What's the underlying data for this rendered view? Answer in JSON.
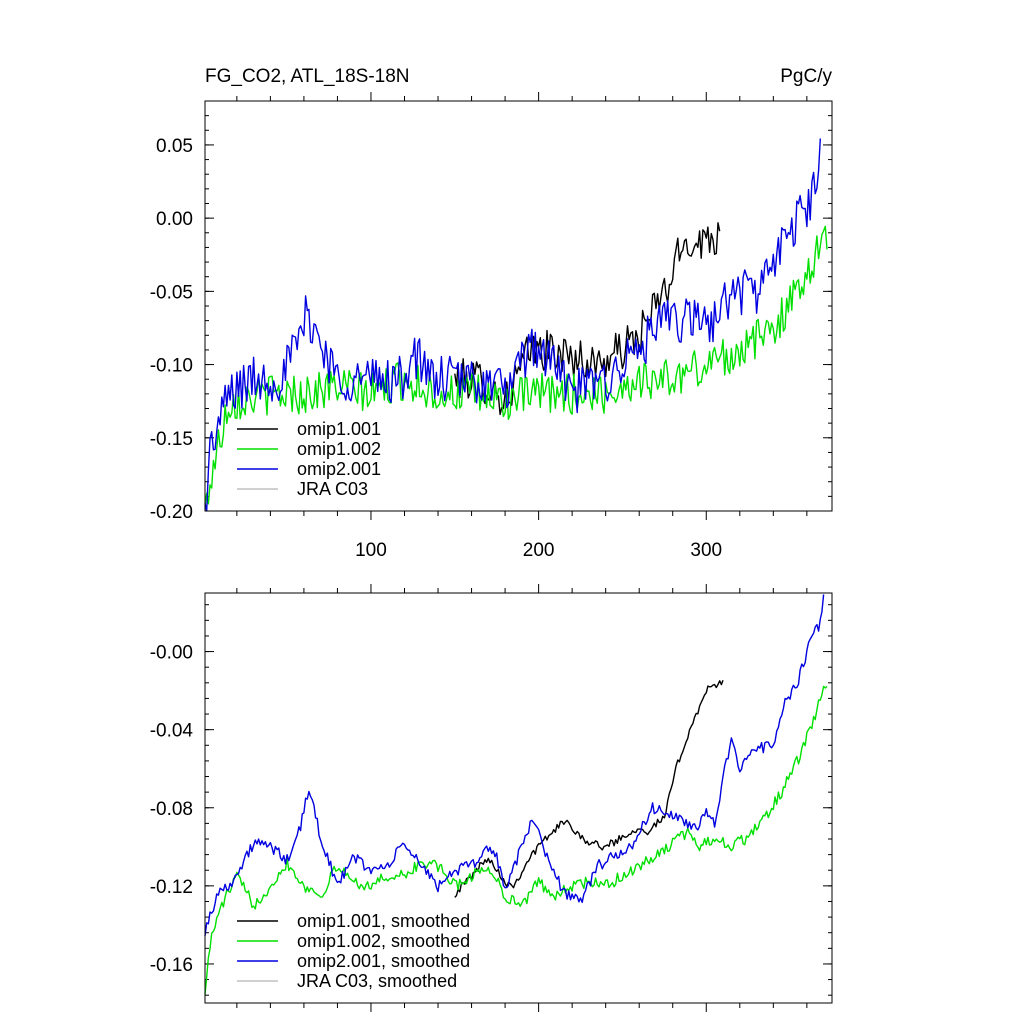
{
  "chart_data": [
    {
      "type": "line",
      "title_left": "FG_CO2, ATL_18S-18N",
      "title_right": "PgC/y",
      "xlabel": "",
      "ylabel": "",
      "xlim": [
        1,
        375
      ],
      "ylim": [
        -0.2,
        0.08
      ],
      "x_ticks": [
        100,
        200,
        300
      ],
      "x_tick_labels": [
        "100",
        "200",
        "300"
      ],
      "y_ticks": [
        -0.2,
        -0.15,
        -0.1,
        -0.05,
        0.0,
        0.05
      ],
      "y_tick_labels": [
        "-0.20",
        "-0.15",
        "-0.10",
        "-0.05",
        "0.00",
        "0.05"
      ],
      "legend_position": "bottom-left",
      "series": [
        {
          "name": "omip1.001",
          "color": "#000000",
          "anchors": [
            [
              150,
              -0.11
            ],
            [
              165,
              -0.11
            ],
            [
              180,
              -0.125
            ],
            [
              195,
              -0.09
            ],
            [
              205,
              -0.09
            ],
            [
              220,
              -0.095
            ],
            [
              235,
              -0.1
            ],
            [
              250,
              -0.09
            ],
            [
              260,
              -0.08
            ],
            [
              270,
              -0.06
            ],
            [
              278,
              -0.045
            ],
            [
              285,
              -0.02
            ],
            [
              292,
              -0.015
            ],
            [
              300,
              -0.015
            ],
            [
              308,
              -0.01
            ]
          ],
          "noise": 0.014
        },
        {
          "name": "omip1.002",
          "color": "#00e000",
          "anchors": [
            [
              1,
              -0.2
            ],
            [
              4,
              -0.18
            ],
            [
              15,
              -0.125
            ],
            [
              40,
              -0.12
            ],
            [
              60,
              -0.12
            ],
            [
              80,
              -0.115
            ],
            [
              100,
              -0.12
            ],
            [
              120,
              -0.11
            ],
            [
              140,
              -0.12
            ],
            [
              160,
              -0.12
            ],
            [
              180,
              -0.125
            ],
            [
              200,
              -0.12
            ],
            [
              220,
              -0.12
            ],
            [
              240,
              -0.12
            ],
            [
              260,
              -0.11
            ],
            [
              280,
              -0.11
            ],
            [
              300,
              -0.1
            ],
            [
              320,
              -0.09
            ],
            [
              335,
              -0.08
            ],
            [
              350,
              -0.06
            ],
            [
              360,
              -0.035
            ],
            [
              368,
              -0.02
            ],
            [
              372,
              -0.015
            ]
          ],
          "noise": 0.014
        },
        {
          "name": "omip2.001",
          "color": "#0000e0",
          "anchors": [
            [
              1,
              -0.2
            ],
            [
              4,
              -0.16
            ],
            [
              15,
              -0.12
            ],
            [
              30,
              -0.11
            ],
            [
              45,
              -0.11
            ],
            [
              55,
              -0.09
            ],
            [
              62,
              -0.065
            ],
            [
              68,
              -0.08
            ],
            [
              80,
              -0.11
            ],
            [
              100,
              -0.11
            ],
            [
              120,
              -0.11
            ],
            [
              125,
              -0.09
            ],
            [
              135,
              -0.11
            ],
            [
              160,
              -0.11
            ],
            [
              175,
              -0.115
            ],
            [
              185,
              -0.115
            ],
            [
              195,
              -0.085
            ],
            [
              210,
              -0.1
            ],
            [
              220,
              -0.12
            ],
            [
              240,
              -0.11
            ],
            [
              250,
              -0.1
            ],
            [
              260,
              -0.09
            ],
            [
              270,
              -0.075
            ],
            [
              280,
              -0.07
            ],
            [
              290,
              -0.07
            ],
            [
              305,
              -0.07
            ],
            [
              315,
              -0.05
            ],
            [
              330,
              -0.05
            ],
            [
              345,
              -0.02
            ],
            [
              355,
              0.0
            ],
            [
              365,
              0.02
            ],
            [
              368,
              0.045
            ]
          ],
          "noise": 0.016
        },
        {
          "name": "JRA C03",
          "color": "#c0c0c0",
          "anchors": [],
          "noise": 0
        }
      ]
    },
    {
      "type": "line",
      "xlabel": "",
      "ylabel": "",
      "xlim": [
        1,
        375
      ],
      "ylim": [
        -0.18,
        0.03
      ],
      "x_ticks": [
        100,
        200,
        300
      ],
      "y_ticks": [
        -0.16,
        -0.12,
        -0.08,
        -0.04,
        0.0
      ],
      "y_tick_labels": [
        "-0.16",
        "-0.12",
        "-0.08",
        "-0.04",
        "-0.00"
      ],
      "legend_position": "bottom-left",
      "series": [
        {
          "name": "omip1.001, smoothed",
          "color": "#000000",
          "anchors": [
            [
              150,
              -0.124
            ],
            [
              160,
              -0.115
            ],
            [
              170,
              -0.105
            ],
            [
              180,
              -0.118
            ],
            [
              185,
              -0.12
            ],
            [
              195,
              -0.105
            ],
            [
              205,
              -0.095
            ],
            [
              215,
              -0.087
            ],
            [
              220,
              -0.09
            ],
            [
              230,
              -0.098
            ],
            [
              240,
              -0.1
            ],
            [
              250,
              -0.095
            ],
            [
              260,
              -0.09
            ],
            [
              265,
              -0.092
            ],
            [
              275,
              -0.085
            ],
            [
              282,
              -0.06
            ],
            [
              288,
              -0.045
            ],
            [
              295,
              -0.03
            ],
            [
              300,
              -0.02
            ],
            [
              305,
              -0.018
            ],
            [
              310,
              -0.015
            ]
          ],
          "noise": 0.002
        },
        {
          "name": "omip1.002, smoothed",
          "color": "#00e000",
          "anchors": [
            [
              1,
              -0.173
            ],
            [
              5,
              -0.145
            ],
            [
              12,
              -0.128
            ],
            [
              20,
              -0.115
            ],
            [
              30,
              -0.13
            ],
            [
              40,
              -0.12
            ],
            [
              50,
              -0.108
            ],
            [
              60,
              -0.12
            ],
            [
              70,
              -0.125
            ],
            [
              80,
              -0.11
            ],
            [
              90,
              -0.118
            ],
            [
              100,
              -0.12
            ],
            [
              110,
              -0.115
            ],
            [
              120,
              -0.115
            ],
            [
              130,
              -0.108
            ],
            [
              140,
              -0.11
            ],
            [
              150,
              -0.12
            ],
            [
              160,
              -0.115
            ],
            [
              170,
              -0.11
            ],
            [
              180,
              -0.125
            ],
            [
              190,
              -0.13
            ],
            [
              200,
              -0.118
            ],
            [
              210,
              -0.125
            ],
            [
              220,
              -0.12
            ],
            [
              230,
              -0.118
            ],
            [
              240,
              -0.12
            ],
            [
              250,
              -0.115
            ],
            [
              260,
              -0.11
            ],
            [
              270,
              -0.105
            ],
            [
              280,
              -0.098
            ],
            [
              290,
              -0.092
            ],
            [
              295,
              -0.1
            ],
            [
              305,
              -0.095
            ],
            [
              315,
              -0.1
            ],
            [
              325,
              -0.095
            ],
            [
              335,
              -0.085
            ],
            [
              345,
              -0.072
            ],
            [
              355,
              -0.055
            ],
            [
              362,
              -0.04
            ],
            [
              368,
              -0.025
            ],
            [
              372,
              -0.016
            ]
          ],
          "noise": 0.003
        },
        {
          "name": "omip2.001, smoothed",
          "color": "#0000e0",
          "anchors": [
            [
              1,
              -0.143
            ],
            [
              8,
              -0.125
            ],
            [
              20,
              -0.115
            ],
            [
              30,
              -0.098
            ],
            [
              40,
              -0.1
            ],
            [
              50,
              -0.107
            ],
            [
              58,
              -0.09
            ],
            [
              63,
              -0.07
            ],
            [
              70,
              -0.095
            ],
            [
              80,
              -0.12
            ],
            [
              90,
              -0.105
            ],
            [
              100,
              -0.112
            ],
            [
              110,
              -0.11
            ],
            [
              120,
              -0.098
            ],
            [
              130,
              -0.11
            ],
            [
              140,
              -0.12
            ],
            [
              150,
              -0.112
            ],
            [
              160,
              -0.11
            ],
            [
              170,
              -0.1
            ],
            [
              175,
              -0.105
            ],
            [
              180,
              -0.122
            ],
            [
              190,
              -0.1
            ],
            [
              197,
              -0.085
            ],
            [
              205,
              -0.105
            ],
            [
              215,
              -0.123
            ],
            [
              225,
              -0.128
            ],
            [
              235,
              -0.11
            ],
            [
              245,
              -0.105
            ],
            [
              255,
              -0.1
            ],
            [
              262,
              -0.09
            ],
            [
              268,
              -0.08
            ],
            [
              275,
              -0.082
            ],
            [
              285,
              -0.087
            ],
            [
              295,
              -0.09
            ],
            [
              300,
              -0.08
            ],
            [
              305,
              -0.088
            ],
            [
              310,
              -0.065
            ],
            [
              315,
              -0.047
            ],
            [
              320,
              -0.06
            ],
            [
              330,
              -0.05
            ],
            [
              340,
              -0.047
            ],
            [
              345,
              -0.03
            ],
            [
              355,
              -0.015
            ],
            [
              362,
              0.005
            ],
            [
              368,
              0.015
            ],
            [
              370,
              0.027
            ]
          ],
          "noise": 0.003
        },
        {
          "name": "JRA C03, smoothed",
          "color": "#c0c0c0",
          "anchors": [],
          "noise": 0
        }
      ]
    }
  ]
}
